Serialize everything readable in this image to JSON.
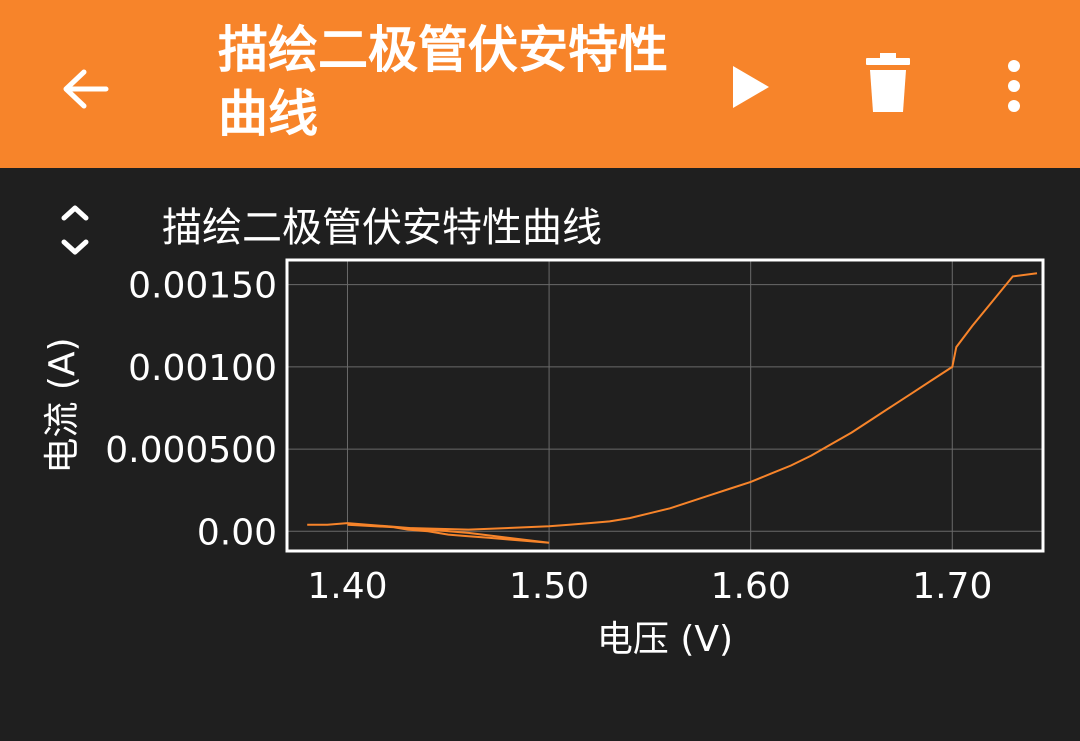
{
  "appbar": {
    "title": "描绘二极管伏安特性曲线",
    "icons": {
      "back": "arrow-left-icon",
      "run": "play-icon",
      "delete": "trash-icon",
      "menu": "more-vert-icon"
    },
    "background_color": "#f7842a"
  },
  "expand_icon": "unfold-icon",
  "chart_data": {
    "type": "line",
    "title": "描绘二极管伏安特性曲线",
    "xlabel": "电压 (V)",
    "ylabel": "电流 (A)",
    "xlim": [
      1.37,
      1.745
    ],
    "ylim": [
      -0.00012,
      0.00165
    ],
    "xticks": [
      {
        "value": 1.4,
        "label": "1.40"
      },
      {
        "value": 1.5,
        "label": "1.50"
      },
      {
        "value": 1.6,
        "label": "1.60"
      },
      {
        "value": 1.7,
        "label": "1.70"
      }
    ],
    "yticks": [
      {
        "value": 0.0,
        "label": "0.00"
      },
      {
        "value": 0.0005,
        "label": "0.000500"
      },
      {
        "value": 0.001,
        "label": "0.00100"
      },
      {
        "value": 0.0015,
        "label": "0.00150"
      }
    ],
    "grid": true,
    "line_color": "#f7842a",
    "series": [
      {
        "x": [
          1.38,
          1.39,
          1.4,
          1.41,
          1.42,
          1.43,
          1.44,
          1.45,
          1.46,
          1.47,
          1.48,
          1.49,
          1.5,
          1.46,
          1.42,
          1.4,
          1.43,
          1.46,
          1.5,
          1.51,
          1.52,
          1.53,
          1.54,
          1.55,
          1.56,
          1.57,
          1.58,
          1.59,
          1.6,
          1.61,
          1.62,
          1.63,
          1.64,
          1.65,
          1.66,
          1.67,
          1.68,
          1.69,
          1.7,
          1.702,
          1.71,
          1.72,
          1.73,
          1.742
        ],
        "y": [
          4e-05,
          4e-05,
          5e-05,
          4e-05,
          3e-05,
          1e-05,
          0.0,
          -2e-05,
          -3e-05,
          -4e-05,
          -5e-05,
          -6e-05,
          -7e-05,
          -1e-05,
          3e-05,
          4e-05,
          2e-05,
          1e-05,
          3e-05,
          4e-05,
          5e-05,
          6e-05,
          8e-05,
          0.00011,
          0.00014,
          0.00018,
          0.00022,
          0.00026,
          0.0003,
          0.00035,
          0.0004,
          0.00046,
          0.00053,
          0.0006,
          0.00068,
          0.00076,
          0.00084,
          0.00092,
          0.001,
          0.00112,
          0.00125,
          0.0014,
          0.00155,
          0.00157
        ]
      }
    ]
  }
}
